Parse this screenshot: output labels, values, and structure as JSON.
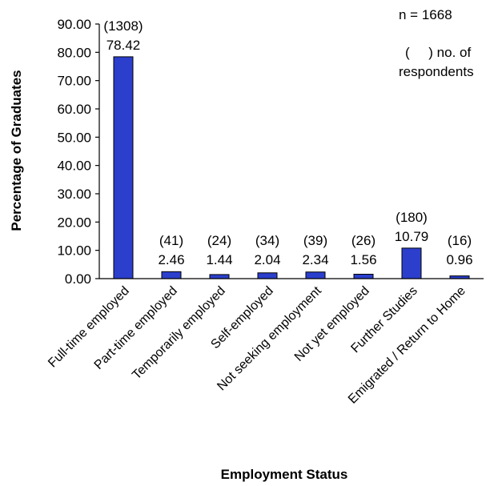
{
  "chart_data": {
    "type": "bar",
    "xlabel": "Employment Status",
    "ylabel": "Percentage of Graduates",
    "ylim": [
      0,
      90
    ],
    "yticks": [
      "0.00",
      "10.00",
      "20.00",
      "30.00",
      "40.00",
      "50.00",
      "60.00",
      "70.00",
      "80.00",
      "90.00"
    ],
    "categories": [
      "Full-time employed",
      "Part-time employed",
      "Temporarily employed",
      "Self-employed",
      "Not seeking employment",
      "Not yet employed",
      "Further Studies",
      "Emigrated / Return to Home"
    ],
    "values": [
      78.42,
      2.46,
      1.44,
      2.04,
      2.34,
      1.56,
      10.79,
      0.96
    ],
    "value_labels": [
      "78.42",
      "2.46",
      "1.44",
      "2.04",
      "2.34",
      "1.56",
      "10.79",
      "0.96"
    ],
    "count_labels": [
      "(1308)",
      "(41)",
      "(24)",
      "(34)",
      "(39)",
      "(26)",
      "(180)",
      "(16)"
    ],
    "bar_color": "#2b3fcc",
    "grid": false,
    "legend": null,
    "annotations": {
      "n_note": "n = 1668",
      "paren_note_line1": "(     ) no. of",
      "paren_note_line2": "respondents"
    }
  }
}
